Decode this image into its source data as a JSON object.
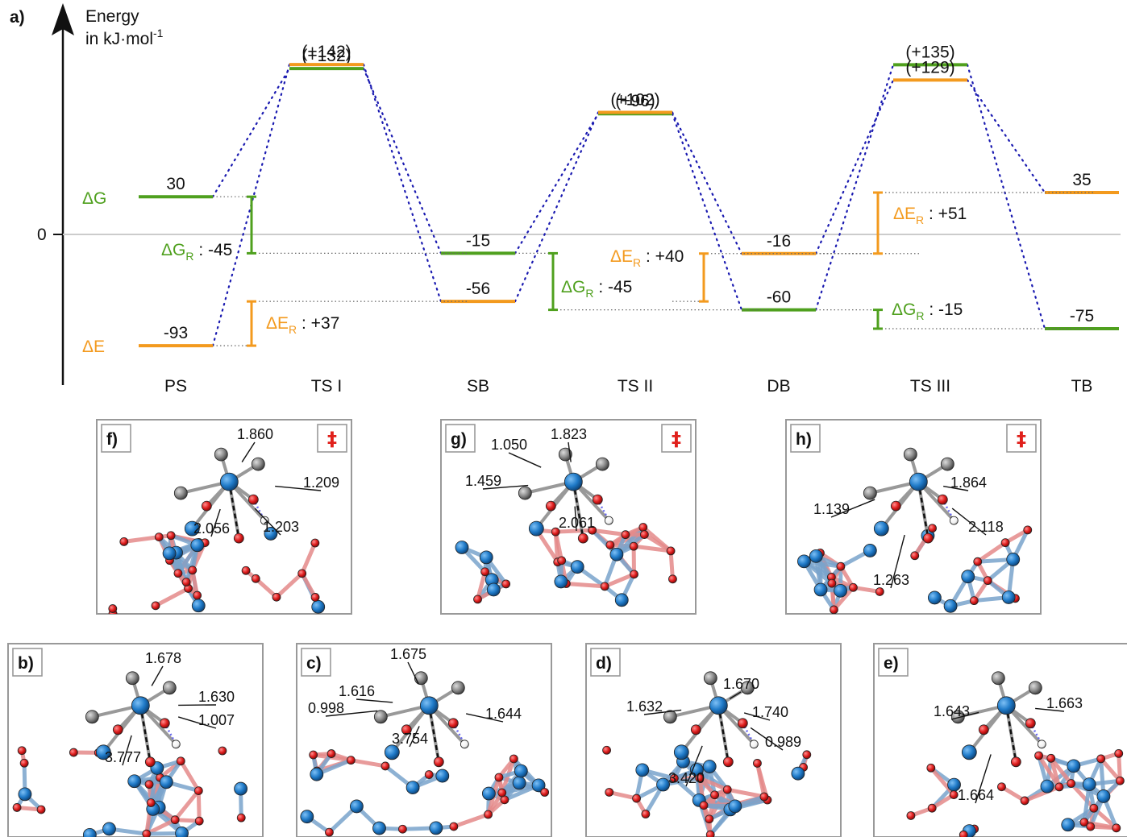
{
  "panel_a": {
    "label": "a)",
    "axis_label_line1": "Energy",
    "axis_label_line2": "in kJ·mol",
    "axis_label_sup": "-1",
    "zero_label": "0",
    "legend_dG": "ΔG",
    "legend_dE": "ΔE",
    "states": [
      "PS",
      "TS I",
      "SB",
      "TS II",
      "DB",
      "TS III",
      "TB"
    ],
    "colors": {
      "dG": "#4fa01e",
      "dE": "#f39a1e",
      "connector": "#1a1ab0",
      "axis": "#111111",
      "zero_line": "#cccccc"
    }
  },
  "chart_data": {
    "type": "energy-profile",
    "y_unit": "kJ·mol-1",
    "states": [
      "PS",
      "TS I",
      "SB",
      "TS II",
      "DB",
      "TS III",
      "TB"
    ],
    "series": [
      {
        "name": "ΔG",
        "values": [
          30,
          132,
          -15,
          96,
          -60,
          135,
          -75
        ],
        "labels": [
          "30",
          "(+132)",
          "-15",
          "(+96)",
          "-60",
          "(+135)",
          "-75"
        ]
      },
      {
        "name": "ΔE",
        "values": [
          -93,
          142,
          -56,
          102,
          -16,
          129,
          35
        ],
        "labels": [
          "-93",
          "(+142)",
          "-56",
          "(+102)",
          "-16",
          "(+129)",
          "35"
        ]
      }
    ],
    "reaction_energies": [
      {
        "series": "ΔG",
        "sub": "R",
        "value": "-45",
        "from": 30,
        "to": -15
      },
      {
        "series": "ΔE",
        "sub": "R",
        "value": "+37",
        "from": -93,
        "to": -56
      },
      {
        "series": "ΔG",
        "sub": "R",
        "value": "-45",
        "from": -15,
        "to": -60
      },
      {
        "series": "ΔE",
        "sub": "R",
        "value": "+40",
        "from": -56,
        "to": -16
      },
      {
        "series": "ΔE",
        "sub": "R",
        "value": "+51",
        "from": -16,
        "to": 35
      },
      {
        "series": "ΔG",
        "sub": "R",
        "value": "-15",
        "from": -60,
        "to": -75
      }
    ]
  },
  "structures": [
    {
      "id": "f",
      "label": "f)",
      "ts_mark": "‡",
      "distances": [
        "1.860",
        "1.209",
        "2.056",
        "1.203"
      ]
    },
    {
      "id": "g",
      "label": "g)",
      "ts_mark": "‡",
      "distances": [
        "1.050",
        "1.823",
        "1.459",
        "2.061"
      ]
    },
    {
      "id": "h",
      "label": "h)",
      "ts_mark": "‡",
      "distances": [
        "1.864",
        "1.139",
        "2.118",
        "1.263"
      ]
    },
    {
      "id": "b",
      "label": "b)",
      "distances": [
        "1.678",
        "1.630",
        "1.007",
        "3.777"
      ]
    },
    {
      "id": "c",
      "label": "c)",
      "distances": [
        "1.675",
        "1.616",
        "0.998",
        "1.644",
        "3.754"
      ]
    },
    {
      "id": "d",
      "label": "d)",
      "distances": [
        "1.670",
        "1.632",
        "1.740",
        "0.989",
        "3.420"
      ]
    },
    {
      "id": "e",
      "label": "e)",
      "distances": [
        "1.643",
        "1.663",
        "1.664"
      ]
    }
  ],
  "atom_colors": {
    "si": "#1f7ac8",
    "o": "#e01e1e",
    "c": "#8a8a8a",
    "h": "#ffffff",
    "bond_si": "#6f9dc8",
    "bond_o": "#e07a7a"
  }
}
